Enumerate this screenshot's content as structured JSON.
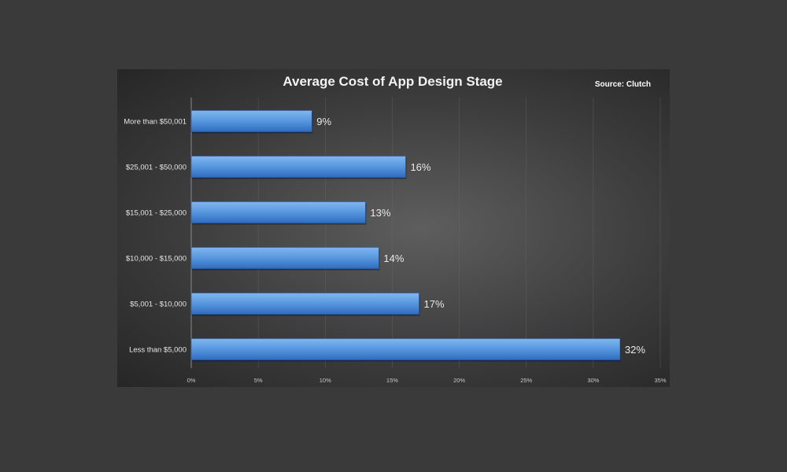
{
  "chart_data": {
    "type": "bar",
    "orientation": "horizontal",
    "title": "Average Cost of App Design Stage",
    "source": "Source: Clutch",
    "categories": [
      "More than $50,001",
      "$25,001 - $50,000",
      "$15,001 - $25,000",
      "$10,000 - $15,000",
      "$5,001 - $10,000",
      "Less than $5,000"
    ],
    "values": [
      9,
      16,
      13,
      14,
      17,
      32
    ],
    "value_labels": [
      "9%",
      "16%",
      "13%",
      "14%",
      "17%",
      "32%"
    ],
    "xlim": [
      0,
      35
    ],
    "x_ticks": [
      "0%",
      "5%",
      "10%",
      "15%",
      "20%",
      "25%",
      "30%",
      "35%"
    ],
    "grid": "vertical",
    "colors": {
      "bar": "#5a9ae0",
      "bar_dark": "#2f6cc0",
      "background": "#3a3a3a"
    }
  }
}
